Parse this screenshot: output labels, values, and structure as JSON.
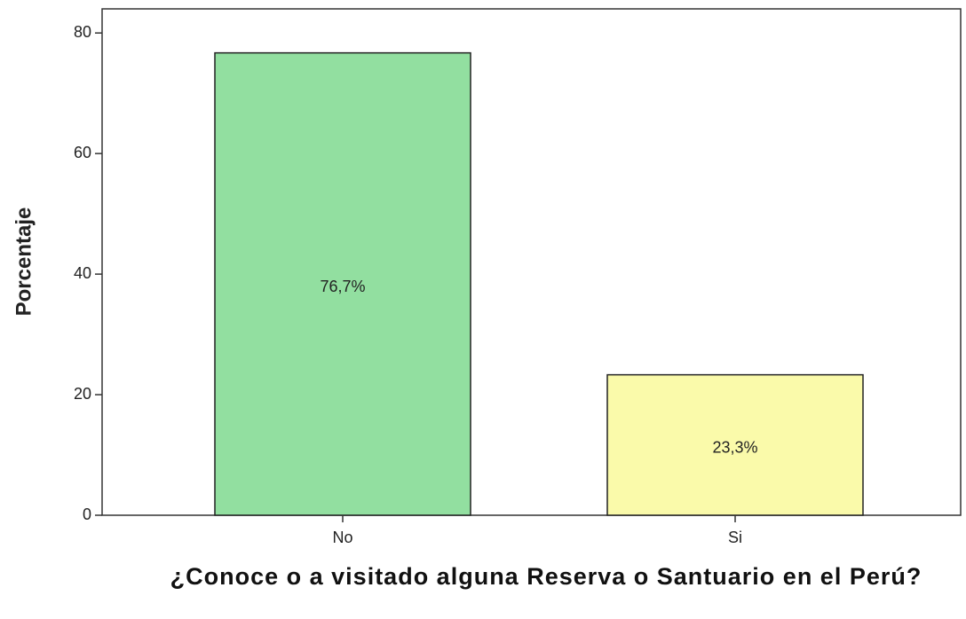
{
  "chart_data": {
    "type": "bar",
    "categories": [
      "No",
      "Si"
    ],
    "values": [
      76.7,
      23.3
    ],
    "value_labels": [
      "76,7%",
      "23,3%"
    ],
    "colors": [
      "#92dfa0",
      "#fafaaa"
    ],
    "ylabel": "Porcentaje",
    "xlabel": "¿Conoce o a visitado alguna Reserva o Santuario en el Perú?",
    "ylim": [
      0,
      84
    ],
    "yticks": [
      0,
      20,
      40,
      60,
      80
    ],
    "grid": false
  }
}
